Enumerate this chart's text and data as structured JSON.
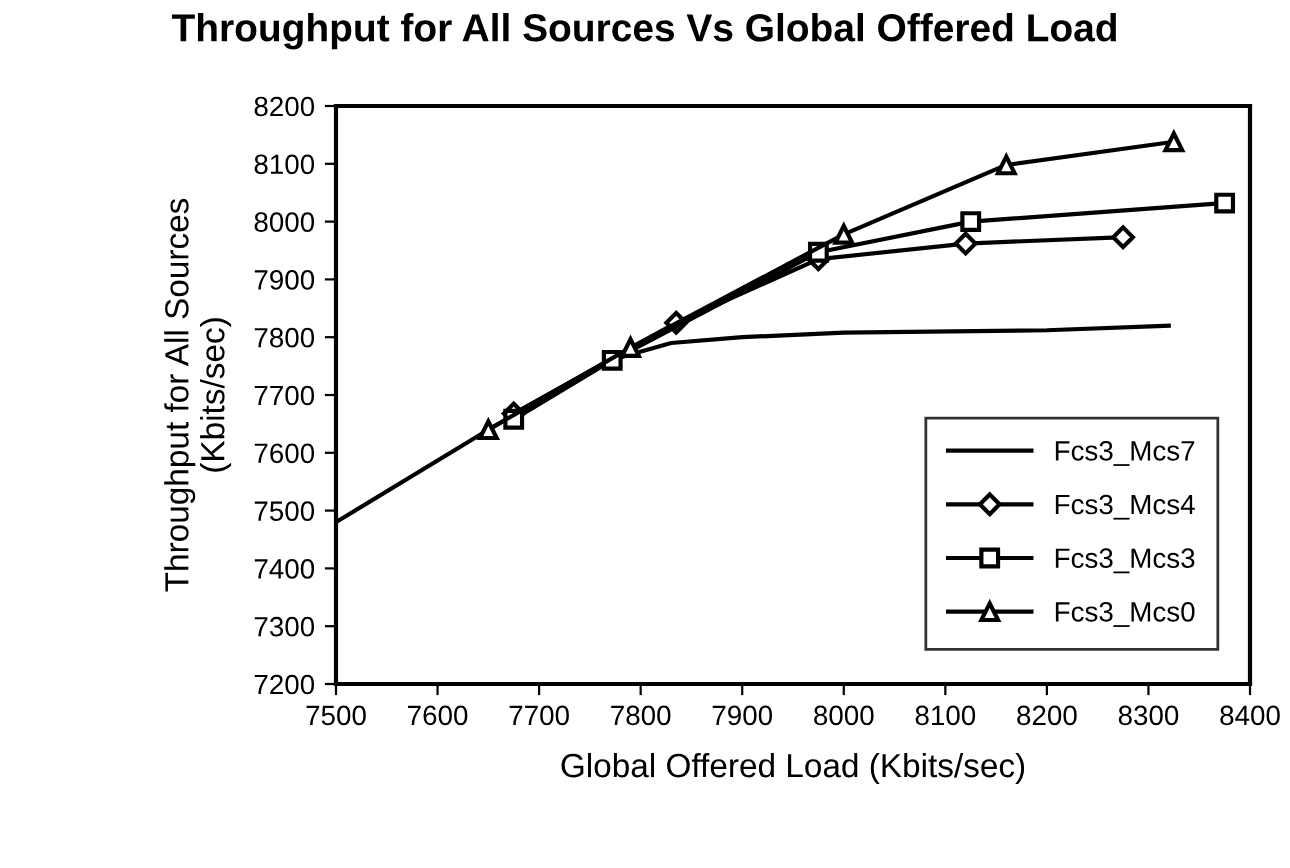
{
  "chart_data": {
    "type": "line",
    "title": "Throughput for All Sources Vs Global Offered Load",
    "xlabel": "Global Offered Load (Kbits/sec)",
    "ylabel": "Throughput for All Sources\n(Kbits/sec)",
    "xlim": [
      7500,
      8400
    ],
    "xticks": [
      7500,
      7600,
      7700,
      7800,
      7900,
      8000,
      8100,
      8200,
      8300,
      8400
    ],
    "ylim": [
      7200,
      8200
    ],
    "yticks": [
      7200,
      7300,
      7400,
      7500,
      7600,
      7700,
      7800,
      7900,
      8000,
      8100,
      8200
    ],
    "grid": false,
    "legend": "center right",
    "line_style": "solid",
    "series": [
      {
        "name": "Fcs3_Mcs7",
        "color": "#000000",
        "marker": "none",
        "x": [
          7500,
          7650,
          7770,
          7830,
          7900,
          8000,
          8200,
          8320
        ],
        "values": [
          7480,
          7640,
          7760,
          7790,
          7800,
          7808,
          7812,
          7820
        ]
      },
      {
        "name": "Fcs3_Mcs4",
        "color": "#000000",
        "marker": "diamond",
        "x": [
          7675,
          7835,
          7975,
          8120,
          8275
        ],
        "values": [
          7668,
          7825,
          7935,
          7962,
          7973
        ]
      },
      {
        "name": "Fcs3_Mcs3",
        "color": "#000000",
        "marker": "square",
        "x": [
          7675,
          7772,
          7975,
          8125,
          8375
        ],
        "values": [
          7658,
          7760,
          7947,
          8000,
          8032
        ]
      },
      {
        "name": "Fcs3_Mcs0",
        "color": "#000000",
        "marker": "triangle",
        "x": [
          7650,
          7790,
          8000,
          8160,
          8325
        ],
        "values": [
          7640,
          7782,
          7978,
          8098,
          8138
        ]
      }
    ]
  }
}
